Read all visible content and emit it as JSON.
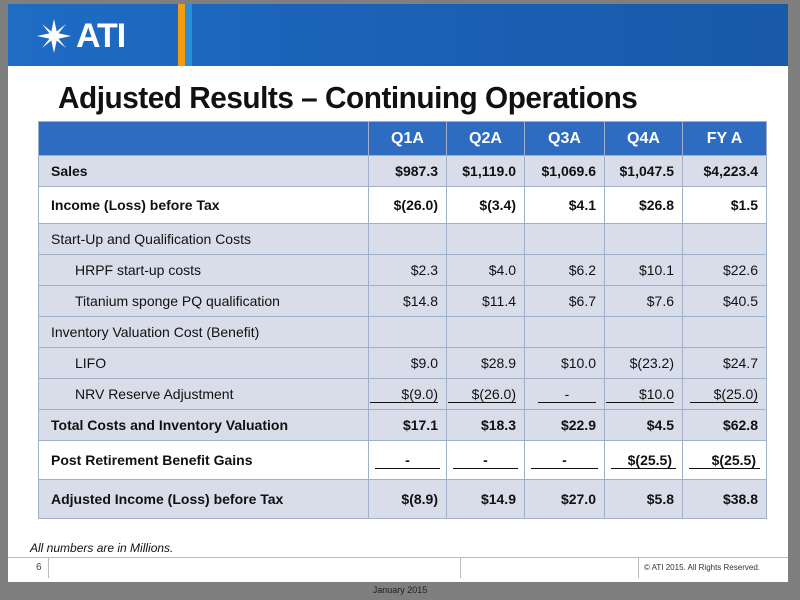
{
  "header": {
    "logo_text": "ATI",
    "title": "Adjusted Results – Continuing Operations"
  },
  "table": {
    "columns": [
      "",
      "Q1A",
      "Q2A",
      "Q3A",
      "Q4A",
      "FY A"
    ],
    "rows": [
      {
        "label": "Sales",
        "values": [
          "$987.3",
          "$1,119.0",
          "$1,069.6",
          "$1,047.5",
          "$4,223.4"
        ]
      },
      {
        "label": "Income (Loss) before Tax",
        "values": [
          "$(26.0)",
          "$(3.4)",
          "$4.1",
          "$26.8",
          "$1.5"
        ]
      },
      {
        "label": "Start-Up and Qualification Costs",
        "values": [
          "",
          "",
          "",
          "",
          ""
        ]
      },
      {
        "label": "HRPF start-up costs",
        "values": [
          "$2.3",
          "$4.0",
          "$6.2",
          "$10.1",
          "$22.6"
        ]
      },
      {
        "label": "Titanium sponge PQ qualification",
        "values": [
          "$14.8",
          "$11.4",
          "$6.7",
          "$7.6",
          "$40.5"
        ]
      },
      {
        "label": "Inventory Valuation Cost (Benefit)",
        "values": [
          "",
          "",
          "",
          "",
          ""
        ]
      },
      {
        "label": "LIFO",
        "values": [
          "$9.0",
          "$28.9",
          "$10.0",
          "$(23.2)",
          "$24.7"
        ]
      },
      {
        "label": "NRV Reserve Adjustment",
        "values": [
          "$(9.0)",
          "$(26.0)",
          "-",
          "$10.0",
          "$(25.0)"
        ]
      },
      {
        "label": "Total Costs and Inventory Valuation",
        "values": [
          "$17.1",
          "$18.3",
          "$22.9",
          "$4.5",
          "$62.8"
        ]
      },
      {
        "label": "Post Retirement Benefit Gains",
        "values": [
          "-",
          "-",
          "-",
          "$(25.5)",
          "$(25.5)"
        ]
      },
      {
        "label": "Adjusted Income (Loss) before Tax",
        "values": [
          "$(8.9)",
          "$14.9",
          "$27.0",
          "$5.8",
          "$38.8"
        ]
      }
    ]
  },
  "footnote": "All numbers are in Millions.",
  "footer": {
    "page_number": "6",
    "copyright": "© ATI 2015. All Rights Reserved.",
    "date": "January 2015"
  },
  "colors": {
    "banner": "#1a5fb4",
    "header_row": "#2d6cc1",
    "shaded_row": "#d9ddea",
    "accent_strip": "#f5a623"
  }
}
